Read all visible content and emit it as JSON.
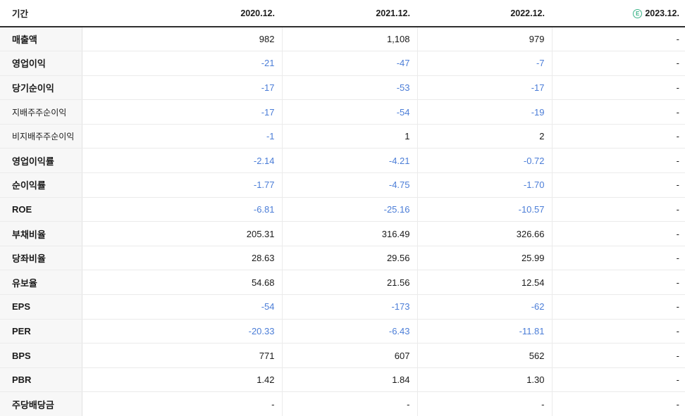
{
  "table": {
    "header": {
      "period_label": "기간",
      "years": [
        "2020.12.",
        "2021.12.",
        "2022.12.",
        "2023.12."
      ],
      "estimate_year_index": 3,
      "estimate_icon_letter": "E"
    },
    "rows": [
      {
        "label": "매출액",
        "sub": false,
        "values": [
          "982",
          "1,108",
          "979",
          "-"
        ]
      },
      {
        "label": "영업이익",
        "sub": false,
        "values": [
          "-21",
          "-47",
          "-7",
          "-"
        ]
      },
      {
        "label": "당기순이익",
        "sub": false,
        "values": [
          "-17",
          "-53",
          "-17",
          "-"
        ]
      },
      {
        "label": "지배주주순이익",
        "sub": true,
        "values": [
          "-17",
          "-54",
          "-19",
          "-"
        ]
      },
      {
        "label": "비지배주주순이익",
        "sub": true,
        "values": [
          "-1",
          "1",
          "2",
          "-"
        ]
      },
      {
        "label": "영업이익률",
        "sub": false,
        "values": [
          "-2.14",
          "-4.21",
          "-0.72",
          "-"
        ]
      },
      {
        "label": "순이익률",
        "sub": false,
        "values": [
          "-1.77",
          "-4.75",
          "-1.70",
          "-"
        ]
      },
      {
        "label": "ROE",
        "sub": false,
        "values": [
          "-6.81",
          "-25.16",
          "-10.57",
          "-"
        ]
      },
      {
        "label": "부채비율",
        "sub": false,
        "values": [
          "205.31",
          "316.49",
          "326.66",
          "-"
        ]
      },
      {
        "label": "당좌비율",
        "sub": false,
        "values": [
          "28.63",
          "29.56",
          "25.99",
          "-"
        ]
      },
      {
        "label": "유보율",
        "sub": false,
        "values": [
          "54.68",
          "21.56",
          "12.54",
          "-"
        ]
      },
      {
        "label": "EPS",
        "sub": false,
        "values": [
          "-54",
          "-173",
          "-62",
          "-"
        ]
      },
      {
        "label": "PER",
        "sub": false,
        "values": [
          "-20.33",
          "-6.43",
          "-11.81",
          "-"
        ]
      },
      {
        "label": "BPS",
        "sub": false,
        "values": [
          "771",
          "607",
          "562",
          "-"
        ]
      },
      {
        "label": "PBR",
        "sub": false,
        "values": [
          "1.42",
          "1.84",
          "1.30",
          "-"
        ]
      },
      {
        "label": "주당배당금",
        "sub": false,
        "values": [
          "-",
          "-",
          "-",
          "-"
        ]
      }
    ]
  },
  "colors": {
    "negative_value": "#4b7dd7",
    "text": "#1d1d1d",
    "grid_line": "#ebebeb",
    "label_column_bg": "#f7f7f7",
    "header_rule": "#2e2e2e",
    "estimate_green": "#3cb489"
  }
}
